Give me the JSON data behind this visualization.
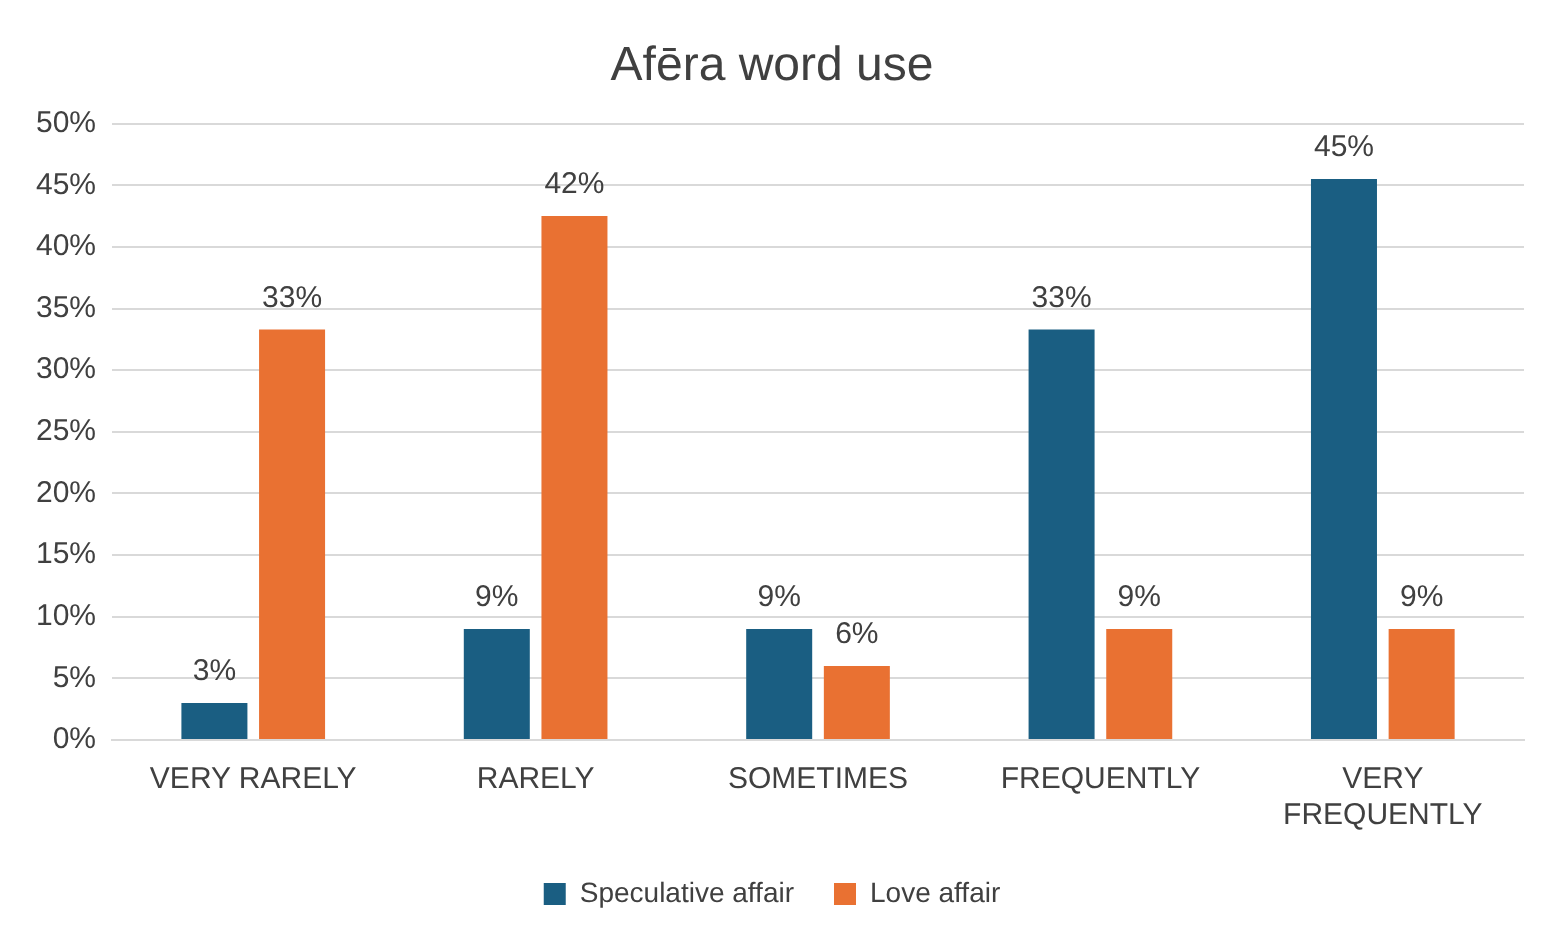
{
  "chart_data": {
    "type": "bar",
    "title": "Afēra word use",
    "categories": [
      "VERY RARELY",
      "RARELY",
      "SOMETIMES",
      "FREQUENTLY",
      "VERY FREQUENTLY"
    ],
    "series": [
      {
        "name": "Speculative affair",
        "color": "#1a5e82",
        "values": [
          3,
          9,
          9,
          33.3,
          45.5
        ],
        "value_labels": [
          "3%",
          "9%",
          "9%",
          "33%",
          "45%"
        ]
      },
      {
        "name": "Love affair",
        "color": "#e97132",
        "values": [
          33.3,
          42.5,
          6,
          9,
          9
        ],
        "value_labels": [
          "33%",
          "42%",
          "6%",
          "9%",
          "9%"
        ]
      }
    ],
    "ylim": [
      0,
      50
    ],
    "yticks": [
      {
        "value": 0,
        "label": "0%"
      },
      {
        "value": 5,
        "label": "5%"
      },
      {
        "value": 10,
        "label": "10%"
      },
      {
        "value": 15,
        "label": "15%"
      },
      {
        "value": 20,
        "label": "20%"
      },
      {
        "value": 25,
        "label": "25%"
      },
      {
        "value": 30,
        "label": "30%"
      },
      {
        "value": 35,
        "label": "35%"
      },
      {
        "value": 40,
        "label": "40%"
      },
      {
        "value": 45,
        "label": "45%"
      },
      {
        "value": 50,
        "label": "50%"
      }
    ],
    "grid": "y",
    "legend": "bottom"
  }
}
